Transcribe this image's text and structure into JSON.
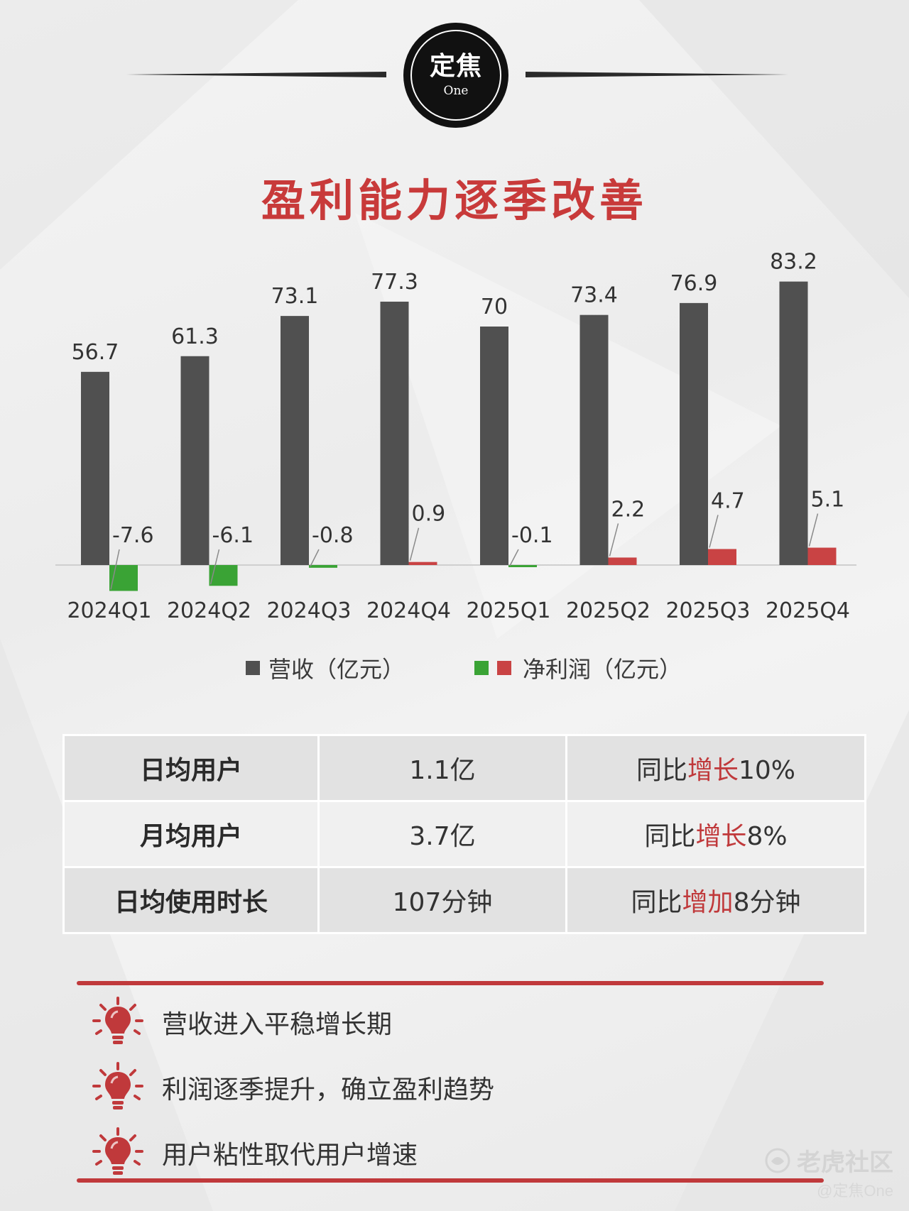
{
  "logo": {
    "main": "定焦",
    "sub": "One"
  },
  "title": "盈利能力逐季改善",
  "chart_data": {
    "type": "bar",
    "categories": [
      "2024Q1",
      "2024Q2",
      "2024Q3",
      "2024Q4",
      "2025Q1",
      "2025Q2",
      "2025Q3",
      "2025Q4"
    ],
    "series": [
      {
        "name": "营收（亿元）",
        "values": [
          56.7,
          61.3,
          73.1,
          77.3,
          70,
          73.4,
          76.9,
          83.2
        ],
        "color": "#505050"
      },
      {
        "name": "净利润（亿元）",
        "values": [
          -7.6,
          -6.1,
          -0.8,
          0.9,
          -0.1,
          2.2,
          4.7,
          5.1
        ],
        "color_positive": "#c94344",
        "color_negative": "#3aa335"
      }
    ]
  },
  "legend": {
    "revenue": "营收（亿元）",
    "profit": "净利润（亿元）"
  },
  "table": [
    {
      "metric": "日均用户",
      "value": "1.1亿",
      "cmp_prefix": "同比",
      "cmp_hl": "增长",
      "cmp_suffix": "10%"
    },
    {
      "metric": "月均用户",
      "value": "3.7亿",
      "cmp_prefix": "同比",
      "cmp_hl": "增长",
      "cmp_suffix": "8%"
    },
    {
      "metric": "日均使用时长",
      "value": "107分钟",
      "cmp_prefix": "同比",
      "cmp_hl": "增加",
      "cmp_suffix": "8分钟"
    }
  ],
  "points": [
    "营收进入平稳增长期",
    "利润逐季提升，确立盈利趋势",
    "用户粘性取代用户增速"
  ],
  "watermark": {
    "brand": "老虎社区",
    "author": "@定焦One"
  }
}
